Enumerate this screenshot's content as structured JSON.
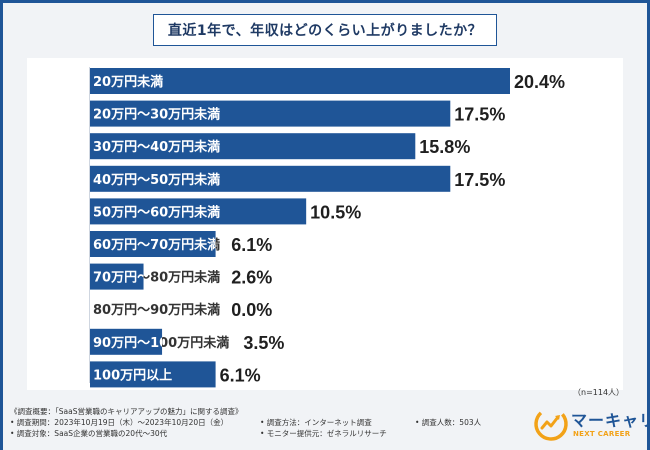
{
  "chart_data": {
    "type": "bar",
    "orientation": "horizontal",
    "title": "直近1年で、年収はどのくらい上がりましたか？",
    "categories": [
      "20万円未満",
      "20万円〜30万円未満",
      "30万円〜40万円未満",
      "40万円〜50万円未満",
      "50万円〜60万円未満",
      "60万円〜70万円未満",
      "70万円〜80万円未満",
      "80万円〜90万円未満",
      "90万円〜100万円未満",
      "100万円以上"
    ],
    "values": [
      20.4,
      17.5,
      15.8,
      17.5,
      10.5,
      6.1,
      2.6,
      0.0,
      3.5,
      6.1
    ],
    "value_labels": [
      "20.4%",
      "17.5%",
      "15.8%",
      "17.5%",
      "10.5%",
      "6.1%",
      "2.6%",
      "0.0%",
      "3.5%",
      "6.1%"
    ],
    "unit": "%",
    "xlim": [
      0,
      20.4
    ],
    "bar_color": "#1f5597"
  },
  "sample_size": "（n=114人）",
  "footer": {
    "overview": "《調査概要：「SaaS営業職のキャリアアップの魅力」に関する調査》",
    "period": "• 調査期間：2023年10月19日（木）〜2023年10月20日（金）",
    "method": "• 調査方法：インターネット調査",
    "respondents": "• 調査人数：503人",
    "target": "• 調査対象：SaaS企業の営業職の20代〜30代",
    "monitor": "• モニター提供元：ゼネラルリサーチ"
  },
  "logo": {
    "name": "マーキャリ",
    "tagline": "NEXT CAREER"
  }
}
